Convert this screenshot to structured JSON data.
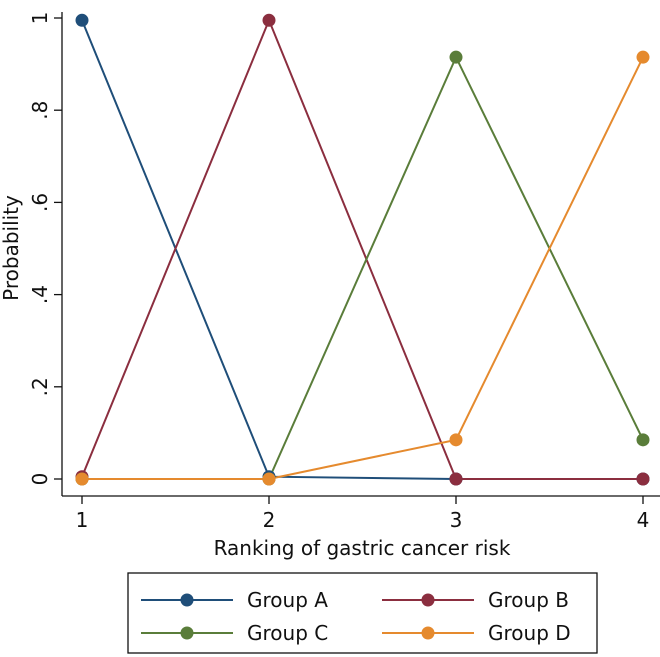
{
  "chart_data": {
    "type": "line",
    "title": "",
    "xlabel": "Ranking of gastric cancer risk",
    "ylabel": "Probability",
    "x": [
      1,
      2,
      3,
      4
    ],
    "xlim": [
      1,
      4
    ],
    "ylim": [
      0,
      1
    ],
    "xticks": [
      {
        "value": 1,
        "label": "1"
      },
      {
        "value": 2,
        "label": "2"
      },
      {
        "value": 3,
        "label": "3"
      },
      {
        "value": 4,
        "label": "4"
      }
    ],
    "yticks": [
      {
        "value": 0,
        "label": "0"
      },
      {
        "value": 0.2,
        "label": ".2"
      },
      {
        "value": 0.4,
        "label": ".4"
      },
      {
        "value": 0.6,
        "label": ".6"
      },
      {
        "value": 0.8,
        "label": ".8"
      },
      {
        "value": 1,
        "label": "1"
      }
    ],
    "grid": false,
    "legend_position": "bottom",
    "series": [
      {
        "name": "Group A",
        "color": "#1f4e79",
        "values": [
          0.995,
          0.005,
          0.0,
          0.0
        ]
      },
      {
        "name": "Group B",
        "color": "#8b2e3f",
        "values": [
          0.005,
          0.995,
          0.0,
          0.0
        ]
      },
      {
        "name": "Group C",
        "color": "#5a7d3a",
        "values": [
          0.0,
          0.0,
          0.915,
          0.085
        ]
      },
      {
        "name": "Group D",
        "color": "#e58a2e",
        "values": [
          0.0,
          0.0,
          0.085,
          0.915
        ]
      }
    ]
  }
}
